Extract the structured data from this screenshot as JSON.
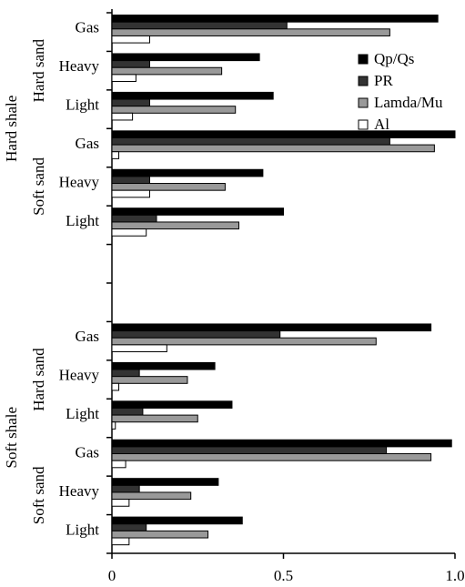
{
  "chart_data": {
    "type": "hbar",
    "categories": [
      "Gas",
      "Heavy",
      "Light",
      "Gas",
      "Heavy",
      "Light",
      null,
      null,
      "Gas",
      "Heavy",
      "Light",
      "Gas",
      "Heavy",
      "Light"
    ],
    "groups": [
      {
        "name": "Hard shale",
        "subgroups": [
          "Hard sand",
          "Soft sand"
        ]
      },
      {
        "name": "Soft shale",
        "subgroups": [
          "Hard sand",
          "Soft sand"
        ]
      }
    ],
    "series": [
      {
        "name": "Qp/Qs",
        "color": "#000000",
        "values": [
          0.95,
          0.43,
          0.47,
          1.0,
          0.44,
          0.5,
          null,
          null,
          0.93,
          0.3,
          0.35,
          0.99,
          0.31,
          0.38
        ]
      },
      {
        "name": "PR",
        "color": "#333333",
        "values": [
          0.51,
          0.11,
          0.11,
          0.81,
          0.11,
          0.13,
          null,
          null,
          0.49,
          0.08,
          0.09,
          0.8,
          0.08,
          0.1
        ]
      },
      {
        "name": "Lamda/Mu",
        "color": "#999999",
        "values": [
          0.81,
          0.32,
          0.36,
          0.94,
          0.33,
          0.37,
          null,
          null,
          0.77,
          0.22,
          0.25,
          0.93,
          0.23,
          0.28
        ]
      },
      {
        "name": "Al",
        "color": "#ffffff",
        "values": [
          0.11,
          0.07,
          0.06,
          0.02,
          0.11,
          0.1,
          null,
          null,
          0.16,
          0.02,
          0.01,
          0.04,
          0.05,
          0.05
        ]
      }
    ],
    "xlim": [
      0,
      1
    ],
    "xticks": [
      0,
      0.5,
      {
        "value": 1,
        "label": "1.0"
      }
    ],
    "legend": "upper-right"
  }
}
